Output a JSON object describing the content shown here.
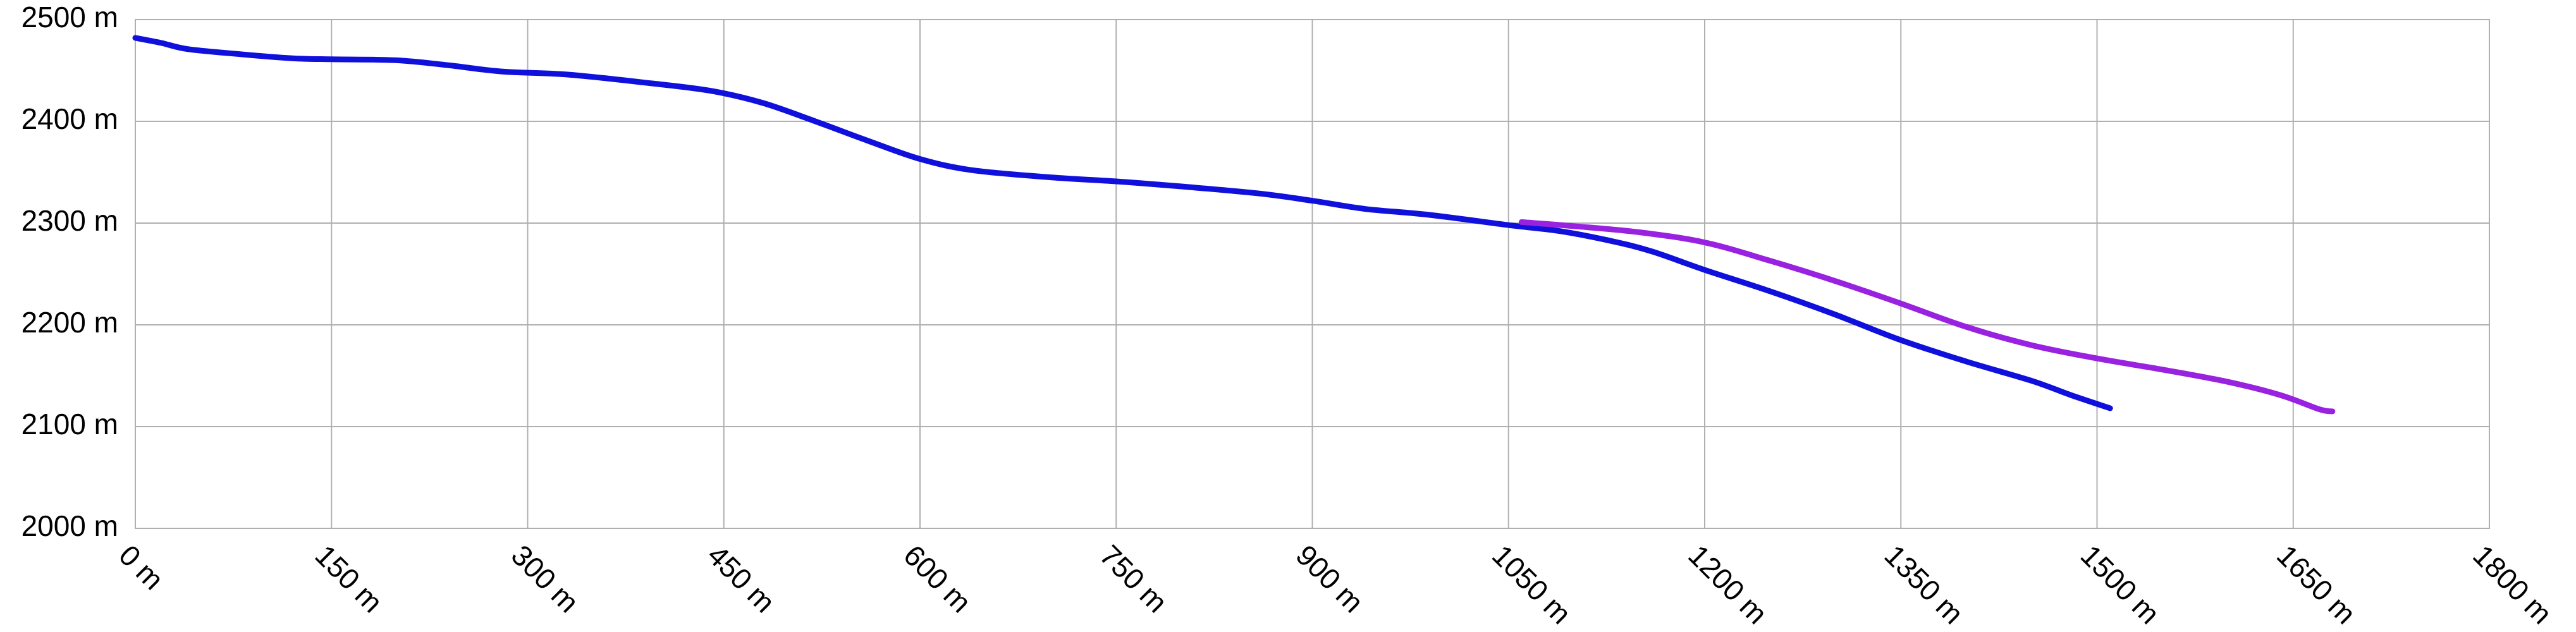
{
  "chart_data": {
    "type": "line",
    "title": "",
    "xlabel": "",
    "ylabel": "",
    "grid": true,
    "legend": "none",
    "xlim": [
      0,
      1800
    ],
    "ylim": [
      2000,
      2500
    ],
    "x_ticks": [
      0,
      150,
      300,
      450,
      600,
      750,
      900,
      1050,
      1200,
      1350,
      1500,
      1650,
      1800
    ],
    "y_ticks": [
      2000,
      2100,
      2200,
      2300,
      2400,
      2500
    ],
    "x_tick_labels": [
      "0 m",
      "150 m",
      "300 m",
      "450 m",
      "600 m",
      "750 m",
      "900 m",
      "1050 m",
      "1200 m",
      "1350 m",
      "1500 m",
      "1650 m",
      "1800 m"
    ],
    "y_tick_labels": [
      "2000 m",
      "2100 m",
      "2200 m",
      "2300 m",
      "2400 m",
      "2500 m"
    ],
    "series": [
      {
        "color": "#1010dd",
        "points": [
          [
            0,
            2482
          ],
          [
            20,
            2477
          ],
          [
            40,
            2471
          ],
          [
            80,
            2466
          ],
          [
            120,
            2462
          ],
          [
            150,
            2461
          ],
          [
            200,
            2460
          ],
          [
            240,
            2455
          ],
          [
            280,
            2449
          ],
          [
            330,
            2446
          ],
          [
            390,
            2438
          ],
          [
            440,
            2430
          ],
          [
            480,
            2418
          ],
          [
            520,
            2400
          ],
          [
            560,
            2381
          ],
          [
            600,
            2363
          ],
          [
            640,
            2352
          ],
          [
            700,
            2345
          ],
          [
            750,
            2341
          ],
          [
            800,
            2336
          ],
          [
            860,
            2329
          ],
          [
            900,
            2322
          ],
          [
            940,
            2314
          ],
          [
            990,
            2308
          ],
          [
            1050,
            2298
          ],
          [
            1090,
            2292
          ],
          [
            1130,
            2282
          ],
          [
            1160,
            2272
          ],
          [
            1200,
            2254
          ],
          [
            1250,
            2233
          ],
          [
            1300,
            2210
          ],
          [
            1350,
            2185
          ],
          [
            1400,
            2164
          ],
          [
            1450,
            2145
          ],
          [
            1480,
            2131
          ],
          [
            1510,
            2118
          ]
        ]
      },
      {
        "color": "#9922e0",
        "points": [
          [
            1060,
            2301
          ],
          [
            1100,
            2297
          ],
          [
            1150,
            2291
          ],
          [
            1200,
            2281
          ],
          [
            1250,
            2263
          ],
          [
            1300,
            2243
          ],
          [
            1350,
            2221
          ],
          [
            1400,
            2198
          ],
          [
            1450,
            2180
          ],
          [
            1500,
            2167
          ],
          [
            1550,
            2156
          ],
          [
            1600,
            2144
          ],
          [
            1640,
            2131
          ],
          [
            1670,
            2117
          ],
          [
            1680,
            2115
          ]
        ]
      }
    ]
  }
}
